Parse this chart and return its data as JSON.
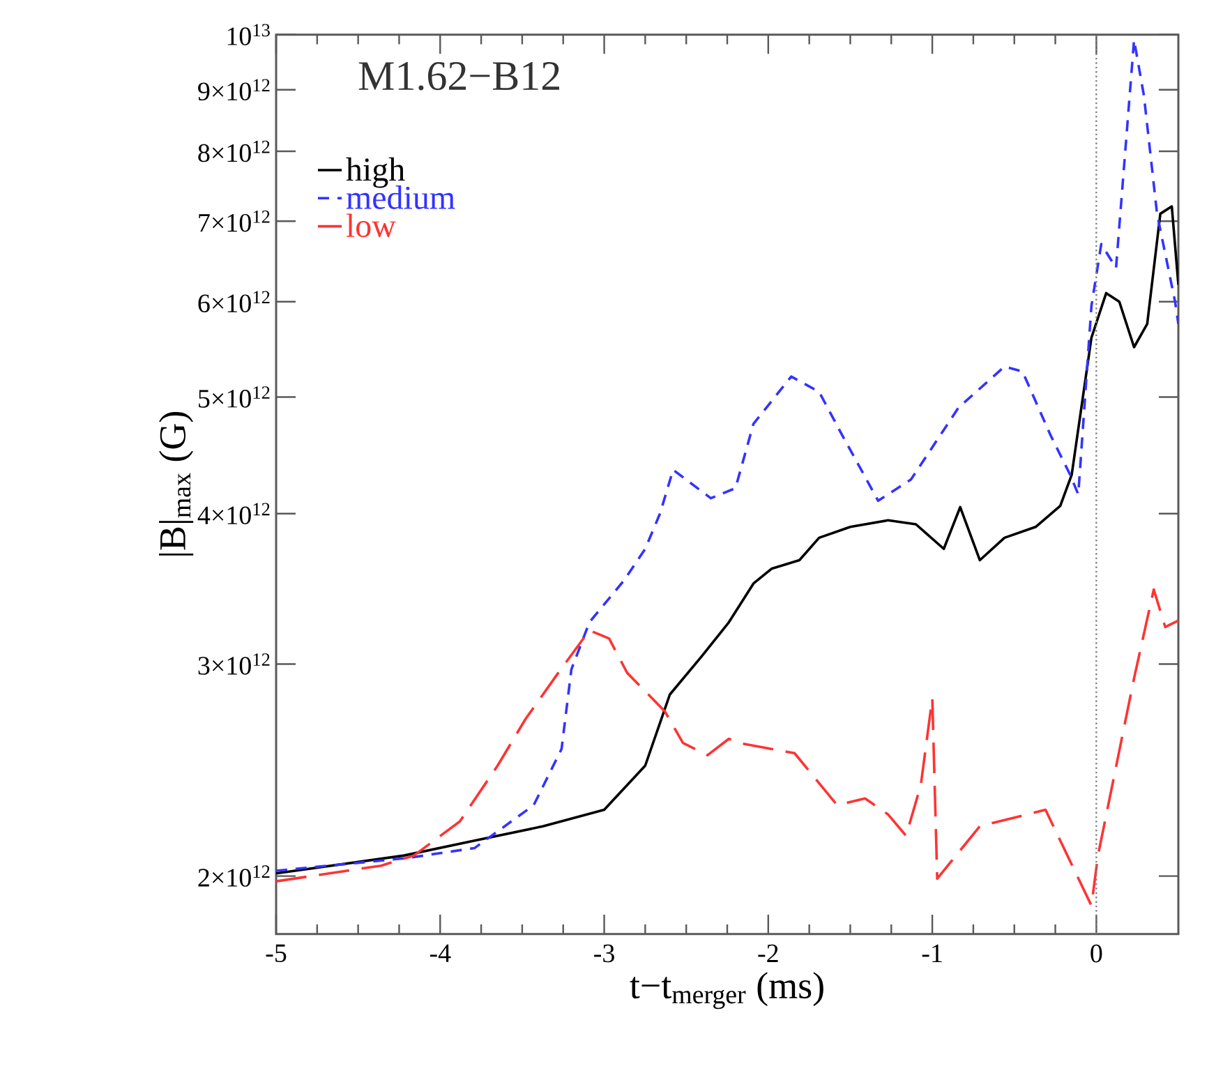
{
  "chart_data": {
    "type": "line",
    "title": "M1.62−B12",
    "xlabel": "t−t$_{merger}$ (ms)",
    "ylabel": "|B|$_{max}$ (G)",
    "xlim": [
      -5,
      0.5
    ],
    "xticks": [
      -5,
      -4,
      -3,
      -2,
      -1,
      0
    ],
    "ylim": [
      1790000000000.0,
      10000000000000.0
    ],
    "log": "y",
    "yticks": [
      {
        "value": 2000000000000.0,
        "label": "2×10$^{12}$"
      },
      {
        "value": 3000000000000.0,
        "label": "3×10$^{12}$"
      },
      {
        "value": 4000000000000.0,
        "label": "4×10$^{12}$"
      },
      {
        "value": 5000000000000.0,
        "label": "5×10$^{12}$"
      },
      {
        "value": 6000000000000.0,
        "label": "6×10$^{12}$"
      },
      {
        "value": 7000000000000.0,
        "label": "7×10$^{12}$"
      },
      {
        "value": 8000000000000.0,
        "label": "8×10$^{12}$"
      },
      {
        "value": 9000000000000.0,
        "label": "9×10$^{12}$"
      },
      {
        "value": 10000000000000.0,
        "label": "10$^{13}$"
      }
    ],
    "legend": "top left",
    "grid": false,
    "ref_lines": [
      {
        "axis": "x",
        "value": 0,
        "label": null,
        "color": "#808080",
        "line_style": "dotted"
      }
    ],
    "series": [
      {
        "name": "high",
        "color": "#000000",
        "line_style": "solid",
        "x": [
          -5,
          -4.22,
          -3.79,
          -3.37,
          -3.0,
          -2.75,
          -2.6,
          -2.41,
          -2.24,
          -2.09,
          -1.98,
          -1.81,
          -1.69,
          -1.5,
          -1.27,
          -1.1,
          -0.93,
          -0.83,
          -0.71,
          -0.56,
          -0.37,
          -0.22,
          -0.15,
          -0.03,
          0.06,
          0.14,
          0.23,
          0.31,
          0.39,
          0.46,
          0.5
        ],
        "values": [
          2010000000000.0,
          2080000000000.0,
          2140000000000.0,
          2200000000000.0,
          2270000000000.0,
          2470000000000.0,
          2830000000000.0,
          3040000000000.0,
          3250000000000.0,
          3500000000000.0,
          3600000000000.0,
          3660000000000.0,
          3820000000000.0,
          3900000000000.0,
          3950000000000.0,
          3920000000000.0,
          3740000000000.0,
          4050000000000.0,
          3660000000000.0,
          3820000000000.0,
          3900000000000.0,
          4060000000000.0,
          4310000000000.0,
          5600000000000.0,
          6100000000000.0,
          6000000000000.0,
          5500000000000.0,
          5750000000000.0,
          7100000000000.0,
          7200000000000.0,
          6200000000000.0
        ]
      },
      {
        "name": "medium",
        "color": "#3333ff",
        "line_style": "dashed",
        "x": [
          -5,
          -4.2,
          -3.79,
          -3.43,
          -3.26,
          -3.2,
          -3.09,
          -2.88,
          -2.75,
          -2.66,
          -2.58,
          -2.35,
          -2.2,
          -2.09,
          -1.86,
          -1.69,
          -1.55,
          -1.33,
          -1.13,
          -0.84,
          -0.56,
          -0.45,
          -0.28,
          -0.16,
          -0.11,
          -0.03,
          0.03,
          0.12,
          0.23,
          0.29,
          0.37,
          0.48,
          0.5
        ],
        "values": [
          2020000000000.0,
          2070000000000.0,
          2110000000000.0,
          2290000000000.0,
          2550000000000.0,
          2970000000000.0,
          3250000000000.0,
          3520000000000.0,
          3740000000000.0,
          4000000000000.0,
          4350000000000.0,
          4120000000000.0,
          4200000000000.0,
          4750000000000.0,
          5200000000000.0,
          5050000000000.0,
          4650000000000.0,
          4100000000000.0,
          4270000000000.0,
          4900000000000.0,
          5300000000000.0,
          5250000000000.0,
          4650000000000.0,
          4310000000000.0,
          4150000000000.0,
          5950000000000.0,
          6700000000000.0,
          6400000000000.0,
          9900000000000.0,
          8900000000000.0,
          7100000000000.0,
          6000000000000.0,
          5750000000000.0
        ]
      },
      {
        "name": "low",
        "color": "#ff3333",
        "line_style": "dashed",
        "x": [
          -5,
          -4.36,
          -4.16,
          -3.88,
          -3.65,
          -3.48,
          -3.28,
          -3.09,
          -2.97,
          -2.86,
          -2.63,
          -2.52,
          -2.37,
          -2.24,
          -2.18,
          -1.84,
          -1.58,
          -1.41,
          -1.27,
          -1.16,
          -1.07,
          -1.0,
          -0.97,
          -0.71,
          -0.31,
          -0.03,
          0.01,
          0.23,
          0.35,
          0.42,
          0.5
        ],
        "values": [
          1980000000000.0,
          2040000000000.0,
          2080000000000.0,
          2220000000000.0,
          2470000000000.0,
          2700000000000.0,
          2950000000000.0,
          3200000000000.0,
          3150000000000.0,
          2950000000000.0,
          2740000000000.0,
          2580000000000.0,
          2520000000000.0,
          2600000000000.0,
          2580000000000.0,
          2530000000000.0,
          2290000000000.0,
          2320000000000.0,
          2250000000000.0,
          2160000000000.0,
          2380000000000.0,
          2810000000000.0,
          1990000000000.0,
          2200000000000.0,
          2270000000000.0,
          1890000000000.0,
          2080000000000.0,
          2920000000000.0,
          3460000000000.0,
          3220000000000.0,
          3260000000000.0
        ]
      }
    ]
  }
}
